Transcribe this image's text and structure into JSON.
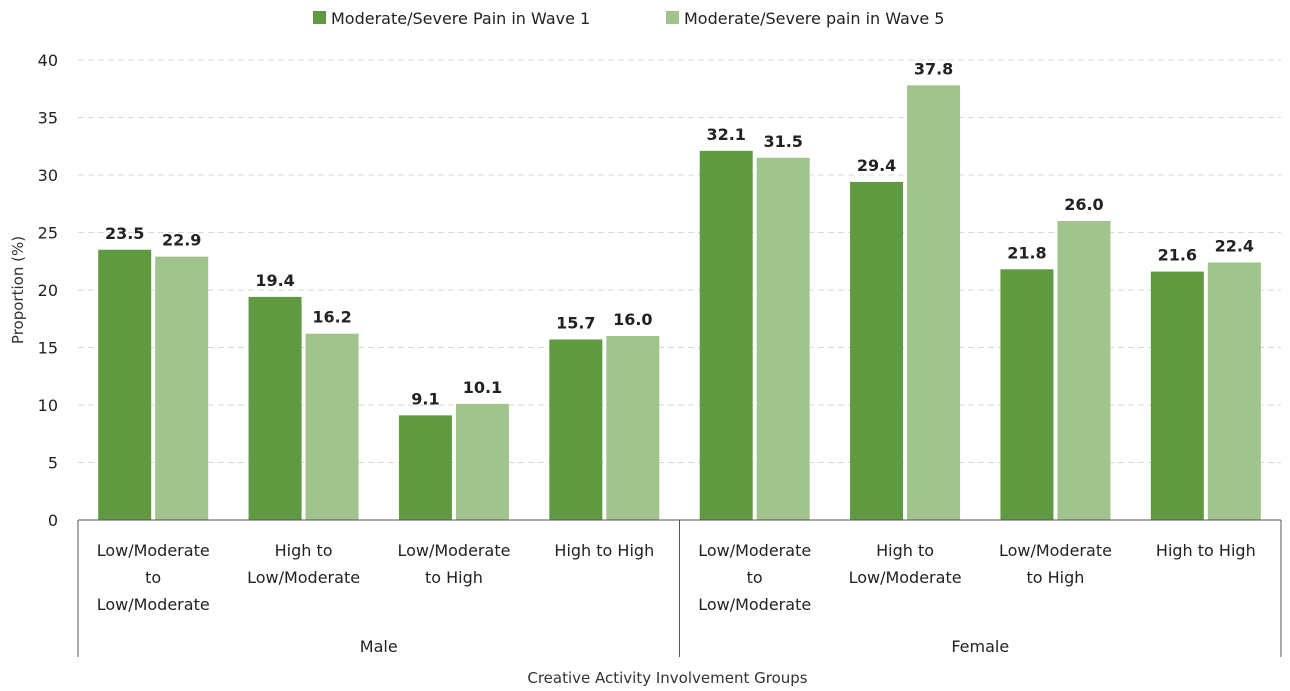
{
  "chart_data": {
    "type": "bar",
    "title": "",
    "xlabel": "Creative Activity Involvement Groups",
    "ylabel": "Proportion (%)",
    "ylim": [
      0,
      40
    ],
    "yticks": [
      0,
      5,
      10,
      15,
      20,
      25,
      30,
      35,
      40
    ],
    "grid": true,
    "legend_position": "top",
    "groups": [
      {
        "name": "Male",
        "categories": [
          [
            "Low/Moderate",
            "to",
            "Low/Moderate"
          ],
          [
            "High to",
            "Low/Moderate"
          ],
          [
            "Low/Moderate",
            "to High"
          ],
          [
            "High to High"
          ]
        ]
      },
      {
        "name": "Female",
        "categories": [
          [
            "Low/Moderate",
            "to",
            "Low/Moderate"
          ],
          [
            "High to",
            "Low/Moderate"
          ],
          [
            "Low/Moderate",
            "to High"
          ],
          [
            "High to High"
          ]
        ]
      }
    ],
    "series": [
      {
        "name": "Moderate/Severe Pain in Wave 1",
        "color": "#5f9a41",
        "values": [
          23.5,
          19.4,
          9.1,
          15.7,
          32.1,
          29.4,
          21.8,
          21.6
        ],
        "labels": [
          "23.5",
          "19.4",
          "9.1",
          "15.7",
          "32.1",
          "29.4",
          "21.8",
          "21.6"
        ]
      },
      {
        "name": "Moderate/Severe pain in Wave 5",
        "color": "#a0c48c",
        "values": [
          22.9,
          16.2,
          10.1,
          16.0,
          31.5,
          37.8,
          26.0,
          22.4
        ],
        "labels": [
          "22.9",
          "16.2",
          "10.1",
          "16.0",
          "31.5",
          "37.8",
          "26.0",
          "22.4"
        ]
      }
    ]
  }
}
